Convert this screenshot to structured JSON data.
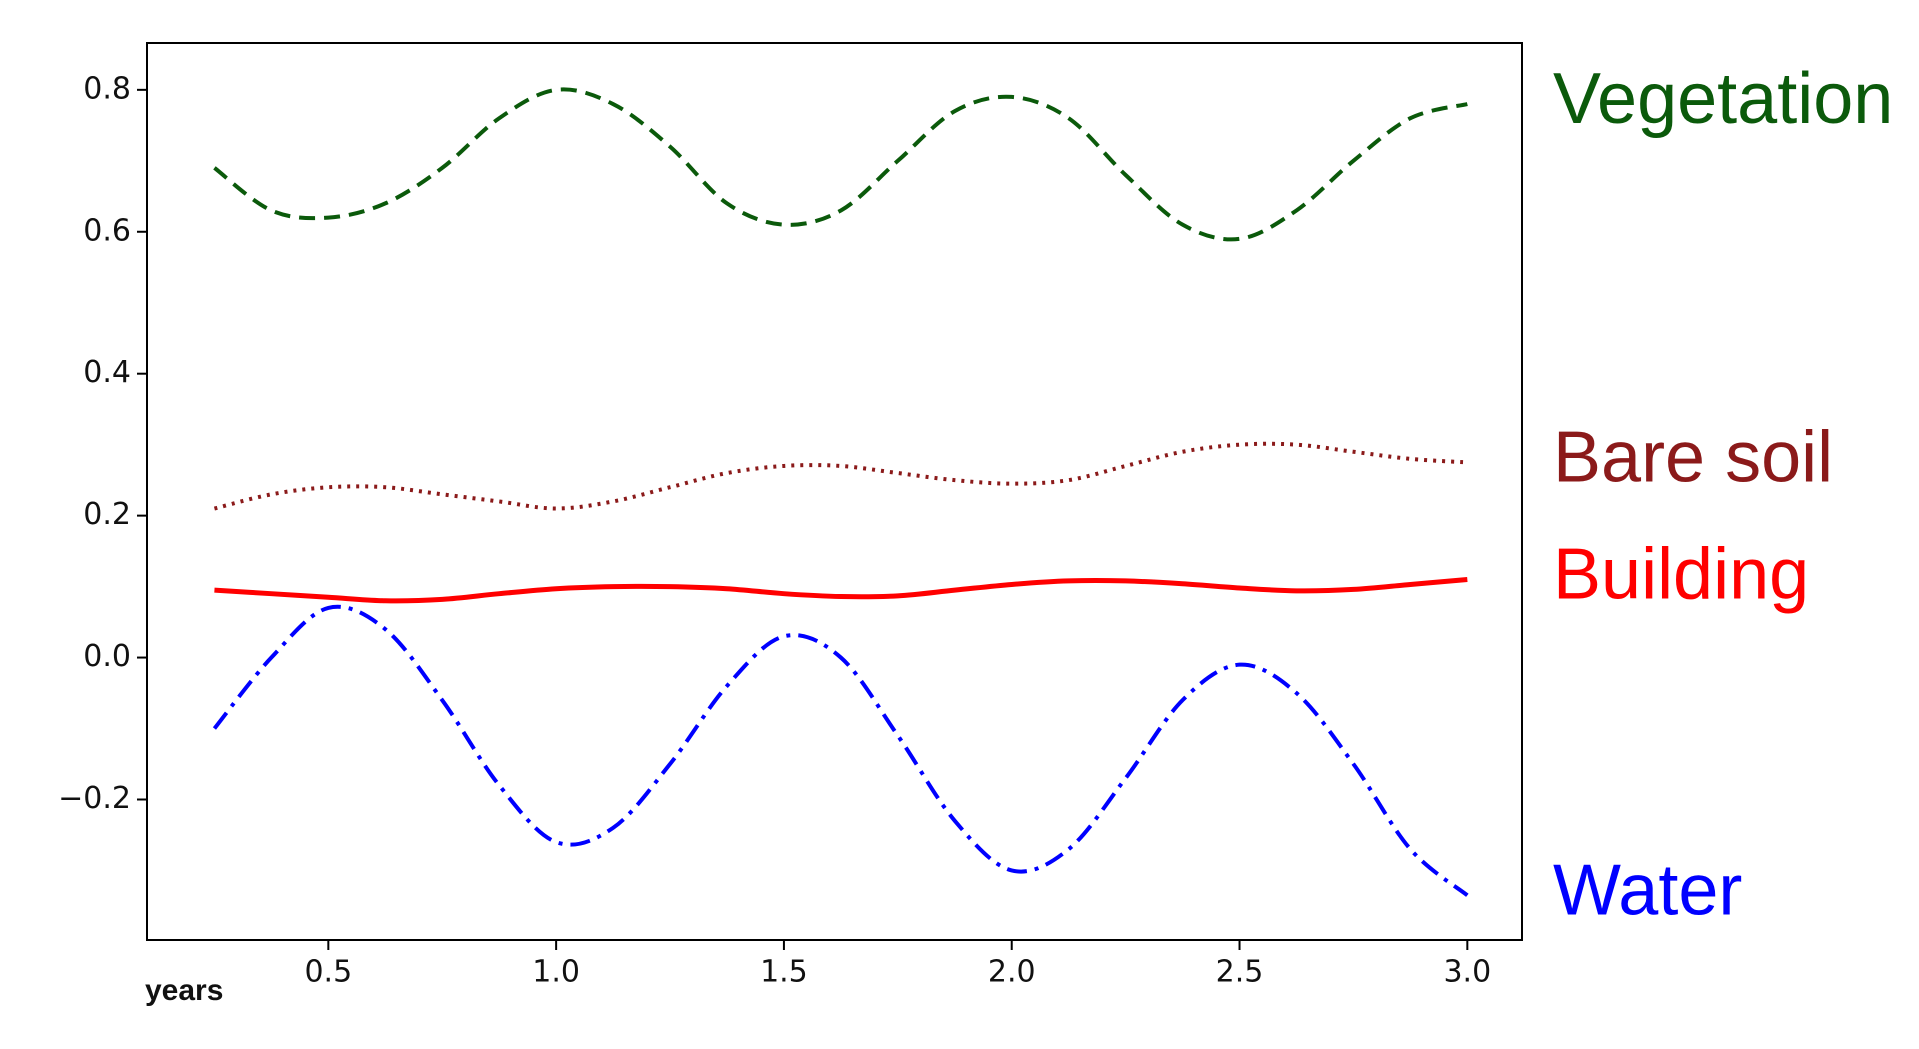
{
  "chart_data": {
    "type": "line",
    "x_label": "years",
    "x": [
      0.25,
      0.375,
      0.5,
      0.625,
      0.75,
      0.875,
      1.0,
      1.125,
      1.25,
      1.375,
      1.5,
      1.625,
      1.75,
      1.875,
      2.0,
      2.125,
      2.25,
      2.375,
      2.5,
      2.625,
      2.75,
      2.875,
      3.0
    ],
    "series": [
      {
        "name": "Vegetation",
        "color": "#0b5a0b",
        "linestyle": "dashed",
        "values": [
          0.69,
          0.63,
          0.62,
          0.64,
          0.69,
          0.76,
          0.8,
          0.78,
          0.72,
          0.64,
          0.61,
          0.63,
          0.7,
          0.77,
          0.79,
          0.76,
          0.68,
          0.61,
          0.59,
          0.63,
          0.7,
          0.76,
          0.78
        ]
      },
      {
        "name": "Bare soil",
        "color": "#8b1a1a",
        "linestyle": "dotted",
        "values": [
          0.21,
          0.23,
          0.24,
          0.24,
          0.23,
          0.22,
          0.21,
          0.22,
          0.24,
          0.26,
          0.27,
          0.27,
          0.26,
          0.25,
          0.245,
          0.25,
          0.27,
          0.29,
          0.3,
          0.3,
          0.29,
          0.28,
          0.275
        ]
      },
      {
        "name": "Building",
        "color": "#ff0000",
        "linestyle": "solid",
        "values": [
          0.095,
          0.09,
          0.085,
          0.08,
          0.082,
          0.09,
          0.097,
          0.1,
          0.1,
          0.097,
          0.09,
          0.086,
          0.087,
          0.095,
          0.103,
          0.108,
          0.108,
          0.104,
          0.098,
          0.094,
          0.096,
          0.103,
          0.11
        ]
      },
      {
        "name": "Water",
        "color": "#0000ff",
        "linestyle": "dashdot",
        "values": [
          -0.1,
          0.0,
          0.07,
          0.04,
          -0.06,
          -0.18,
          -0.26,
          -0.24,
          -0.15,
          -0.04,
          0.03,
          0.0,
          -0.11,
          -0.23,
          -0.3,
          -0.27,
          -0.17,
          -0.06,
          -0.01,
          -0.05,
          -0.15,
          -0.27,
          -0.335
        ]
      }
    ],
    "xlim": [
      0.102,
      3.12
    ],
    "ylim": [
      -0.398,
      0.866
    ],
    "xticks": [
      0.5,
      {
        "value": 1,
        "label": "1.0"
      },
      1.5,
      {
        "value": 2,
        "label": "2.0"
      },
      2.5,
      {
        "value": 3,
        "label": "3.0"
      }
    ],
    "yticks": [
      {
        "value": -0.2,
        "label": "−0.2"
      },
      {
        "value": 0,
        "label": "0.0"
      },
      0.2,
      0.4,
      0.6,
      0.8
    ],
    "grid": false
  }
}
